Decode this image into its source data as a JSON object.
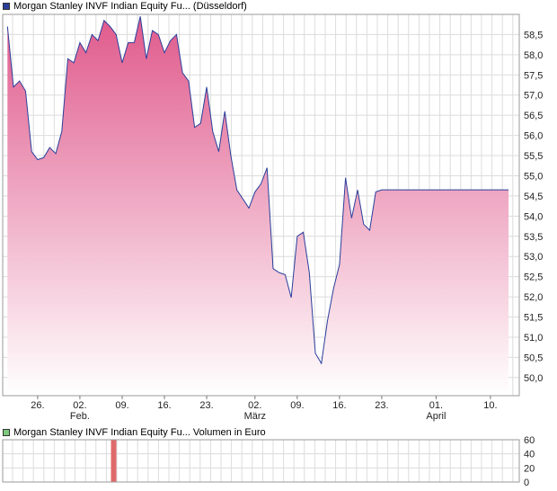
{
  "legends": {
    "main": {
      "label": "Morgan Stanley INVF Indian Equity Fu... (Düsseldorf)",
      "color": "#2a3f9a"
    },
    "volume": {
      "label": "Morgan Stanley INVF Indian Equity Fu... Volumen in Euro",
      "color": "#7dc87d"
    }
  },
  "chart_data": [
    {
      "type": "area",
      "series": [
        {
          "name": "Morgan Stanley INVF Indian Equity Fu... (Düsseldorf)",
          "x": [
            "01-21",
            "01-22",
            "01-23",
            "01-24",
            "01-25",
            "01-26",
            "01-27",
            "01-28",
            "01-29",
            "01-30",
            "01-31",
            "02-01",
            "02-02",
            "02-03",
            "02-04",
            "02-05",
            "02-06",
            "02-07",
            "02-08",
            "02-09",
            "02-10",
            "02-11",
            "02-12",
            "02-13",
            "02-14",
            "02-15",
            "02-16",
            "02-17",
            "02-18",
            "02-19",
            "02-20",
            "02-21",
            "02-22",
            "02-23",
            "02-24",
            "02-25",
            "02-26",
            "02-27",
            "02-28",
            "03-01",
            "03-02",
            "03-03",
            "03-04",
            "03-05",
            "03-06",
            "03-07",
            "03-08",
            "03-09",
            "03-10",
            "03-11",
            "03-12",
            "03-13",
            "03-14",
            "03-15",
            "03-16",
            "03-17",
            "03-18",
            "03-19",
            "03-20",
            "03-21",
            "03-22",
            "03-23",
            "03-24",
            "03-25",
            "03-26",
            "03-27",
            "03-28",
            "03-29",
            "03-30",
            "03-31",
            "04-01",
            "04-02",
            "04-03",
            "04-04",
            "04-05",
            "04-06",
            "04-07",
            "04-08",
            "04-09",
            "04-10",
            "04-11",
            "04-12",
            "04-13"
          ],
          "values": [
            58.7,
            57.2,
            57.35,
            57.1,
            55.6,
            55.4,
            55.45,
            55.7,
            55.55,
            56.1,
            57.9,
            57.8,
            58.3,
            58.05,
            58.5,
            58.35,
            58.85,
            58.7,
            58.5,
            57.8,
            58.3,
            58.3,
            58.95,
            57.9,
            58.6,
            58.5,
            58.05,
            58.35,
            58.5,
            57.55,
            57.35,
            56.2,
            56.3,
            57.2,
            56.1,
            55.6,
            56.6,
            55.5,
            54.65,
            54.2,
            54.6,
            54.8,
            55.2,
            52.7,
            52.6,
            52.55,
            51.98,
            53.5,
            53.6,
            52.6,
            50.6,
            50.35,
            51.4,
            52.2,
            52.8,
            54.95,
            53.95,
            54.65,
            53.8,
            53.65,
            54.6,
            54.65,
            54.65,
            54.65,
            54.65,
            54.65,
            54.65,
            54.65,
            54.65,
            54.65,
            54.65,
            54.65,
            54.65,
            54.65,
            54.65,
            54.65,
            54.65,
            54.65,
            54.65,
            54.65,
            54.65,
            54.65,
            54.65
          ],
          "color": "#2a3f9a"
        }
      ],
      "fill_gradient": [
        "#e05a8c",
        "#ffffff"
      ],
      "xaxis": {
        "ticks": [
          "26.",
          "02.",
          "09.",
          "16.",
          "23.",
          "02.",
          "09.",
          "16.",
          "23.",
          "01.",
          "10."
        ],
        "month_labels": [
          "Feb.",
          "März",
          "April"
        ]
      },
      "yaxis": {
        "ticks": [
          "50,0",
          "50,5",
          "51,0",
          "51,5",
          "52,0",
          "52,5",
          "53,0",
          "53,5",
          "54,0",
          "54,5",
          "55,0",
          "55,5",
          "56,0",
          "56,5",
          "57,0",
          "57,5",
          "58,0",
          "58,5"
        ],
        "ylim": [
          49.55,
          59.0
        ],
        "position": "right"
      },
      "grid": true
    },
    {
      "type": "bar",
      "series": [
        {
          "name": "Volumen in Euro",
          "x": [
            "02-09"
          ],
          "values": [
            60
          ],
          "color": "#e06a6a"
        }
      ],
      "yaxis": {
        "ticks": [
          "0",
          "20",
          "40",
          "60"
        ],
        "ylim": [
          0,
          60
        ],
        "position": "right"
      },
      "grid": true
    }
  ]
}
